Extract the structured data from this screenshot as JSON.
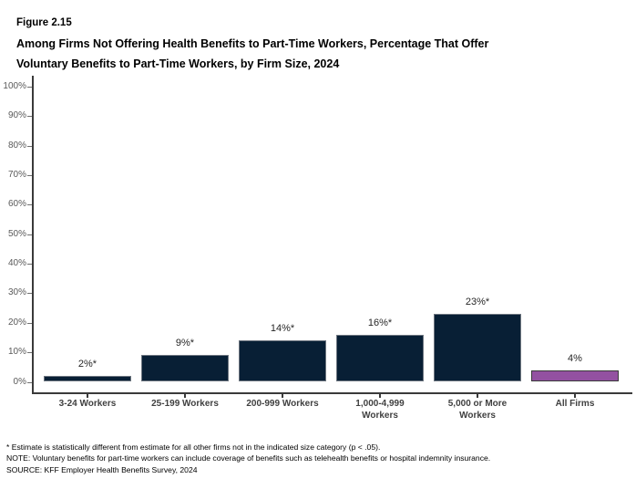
{
  "figure": {
    "label": "Figure 2.15",
    "title_lines": [
      "Among Firms Not Offering Health Benefits to Part-Time Workers, Percentage That Offer",
      "Voluntary Benefits to Part-Time Workers, by Firm Size, 2024"
    ]
  },
  "chart_data": {
    "type": "bar",
    "title": "Among Firms Not Offering Health Benefits to Part-Time Workers, Percentage That Offer Voluntary Benefits to Part-Time Workers, by Firm Size, 2024",
    "categories": [
      "3-24 Workers",
      "25-199 Workers",
      "200-999 Workers",
      "1,000-4,999 Workers",
      "5,000 or More Workers",
      "All Firms"
    ],
    "values": [
      2,
      9,
      14,
      16,
      23,
      4
    ],
    "bar_labels": [
      "2%*",
      "9%*",
      "14%*",
      "16%*",
      "23%*",
      "4%"
    ],
    "bar_colors": [
      "#081F35",
      "#081F35",
      "#081F35",
      "#081F35",
      "#081F35",
      "#9351A1"
    ],
    "xlabel": "",
    "ylabel": "",
    "ylim": [
      0,
      100
    ],
    "ytick_labels": [
      "0%",
      "10%",
      "20%",
      "30%",
      "40%",
      "50%",
      "60%",
      "70%",
      "80%",
      "90%",
      "100%"
    ],
    "grid": false,
    "legend": false
  },
  "footnotes": {
    "asterisk": "* Estimate is statistically different from estimate for all other firms not in the indicated size category (p < .05).",
    "note": "NOTE: Voluntary benefits for part-time workers can include coverage of benefits such as telehealth benefits or hospital indemnity insurance.",
    "source": "SOURCE: KFF Employer Health Benefits Survey, 2024"
  },
  "colors": {
    "bar_navy": "#081F35",
    "bar_purple": "#9351A1",
    "navy_border": "#6e7680",
    "purple_border": "#3a3a3a",
    "axis": "#3a3a3a",
    "ytick_label": "#595959",
    "category_label": "#404040",
    "value_label": "#262626"
  }
}
